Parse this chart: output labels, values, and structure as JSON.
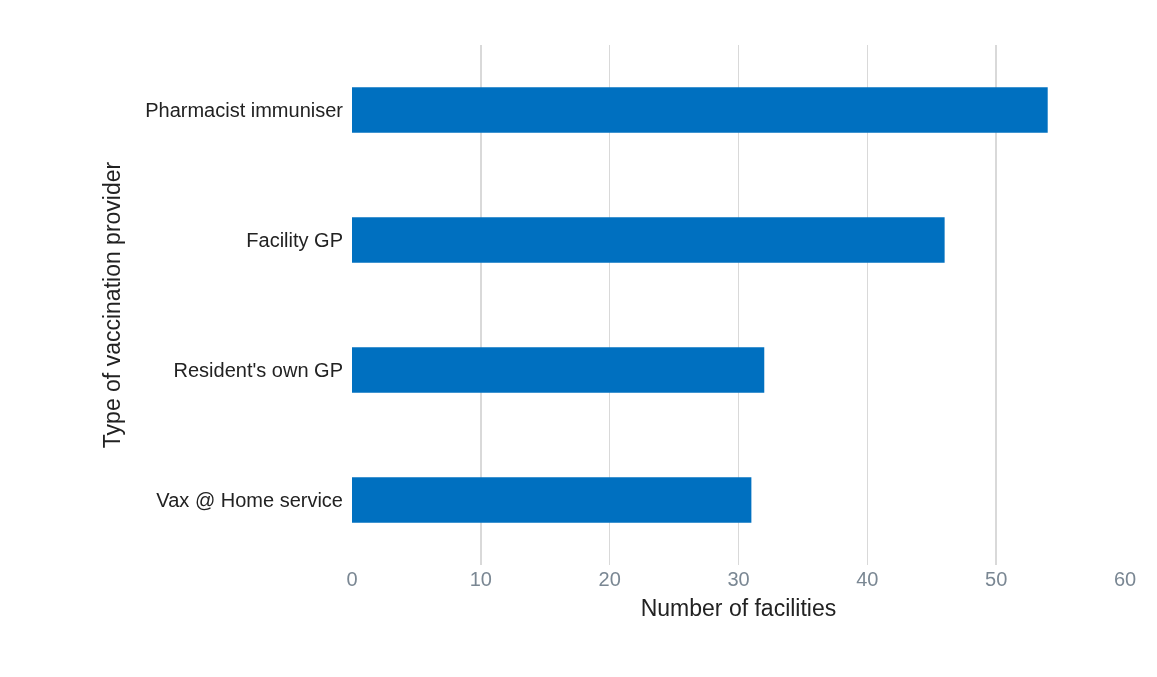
{
  "chart_data": {
    "type": "bar",
    "orientation": "horizontal",
    "xlabel": "Number of facilities",
    "ylabel": "Type of vaccination provider",
    "categories": [
      "Pharmacist immuniser",
      "Facility GP",
      "Resident's own GP",
      "Vax @ Home service"
    ],
    "values": [
      54,
      46,
      32,
      31
    ],
    "color": "#0070c0",
    "xlim": [
      0,
      60
    ],
    "xticks": [
      0,
      10,
      20,
      30,
      40,
      50,
      60
    ],
    "grid": "x"
  }
}
